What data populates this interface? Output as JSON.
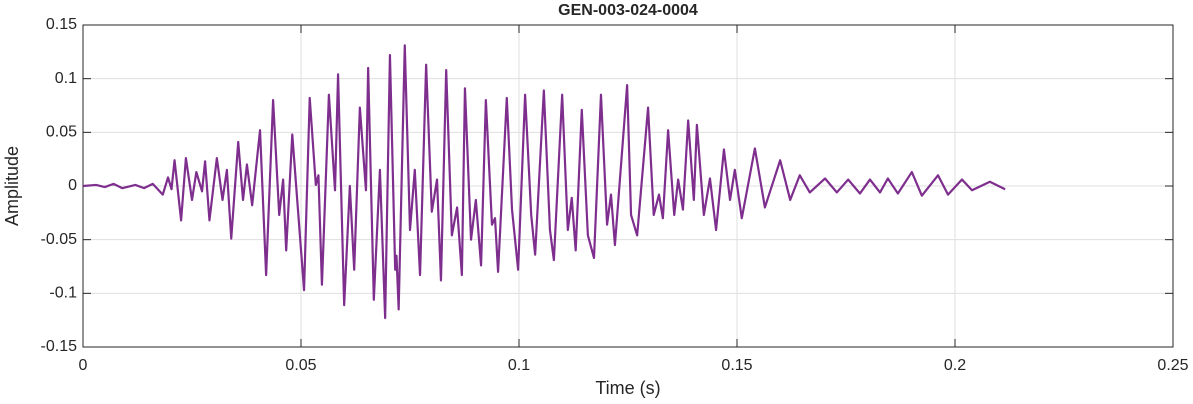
{
  "chart_data": {
    "type": "line",
    "title": "GEN-003-024-0004",
    "x_label": "Time (s)",
    "y_label": "Amplitude",
    "color": "#7e2f8e",
    "grid": true,
    "xlim": [
      0,
      0.25
    ],
    "xticks": [
      0,
      0.05,
      0.1,
      0.15,
      0.2,
      0.25
    ],
    "ylim": [
      -0.15,
      0.15
    ],
    "yticks": [
      -0.15,
      -0.1,
      -0.05,
      0,
      0.05,
      0.1,
      0.15
    ],
    "x": [
      0,
      0.003,
      0.005,
      0.007,
      0.009,
      0.012,
      0.014,
      0.016,
      0.0183,
      0.0195,
      0.0203,
      0.021,
      0.0225,
      0.0236,
      0.025,
      0.026,
      0.0273,
      0.028,
      0.029,
      0.0307,
      0.032,
      0.033,
      0.034,
      0.0356,
      0.0367,
      0.0376,
      0.0388,
      0.0406,
      0.042,
      0.0436,
      0.045,
      0.0459,
      0.0466,
      0.048,
      0.0493,
      0.0507,
      0.052,
      0.0534,
      0.054,
      0.0548,
      0.0564,
      0.0578,
      0.0585,
      0.0599,
      0.0612,
      0.0622,
      0.0635,
      0.0649,
      0.0654,
      0.0667,
      0.0681,
      0.0693,
      0.0704,
      0.0716,
      0.0719,
      0.0724,
      0.0738,
      0.075,
      0.0761,
      0.0773,
      0.0787,
      0.08,
      0.0812,
      0.0821,
      0.0833,
      0.0846,
      0.0858,
      0.0869,
      0.0876,
      0.089,
      0.0901,
      0.0913,
      0.0924,
      0.0938,
      0.0945,
      0.0952,
      0.0972,
      0.0984,
      0.0998,
      0.1014,
      0.1028,
      0.1037,
      0.1057,
      0.1071,
      0.108,
      0.1099,
      0.1112,
      0.1121,
      0.113,
      0.1144,
      0.1158,
      0.1172,
      0.1188,
      0.1202,
      0.1211,
      0.122,
      0.1248,
      0.1257,
      0.1271,
      0.1296,
      0.1309,
      0.1321,
      0.133,
      0.1342,
      0.1356,
      0.1365,
      0.1376,
      0.1388,
      0.1401,
      0.1408,
      0.1424,
      0.1438,
      0.1452,
      0.147,
      0.1484,
      0.1495,
      0.1511,
      0.1541,
      0.1564,
      0.1599,
      0.1622,
      0.1644,
      0.1667,
      0.1702,
      0.1729,
      0.1755,
      0.1782,
      0.1805,
      0.1828,
      0.1846,
      0.1869,
      0.1901,
      0.1924,
      0.1961,
      0.1984,
      0.2016,
      0.2039,
      0.208,
      0.2115
    ],
    "values": [
      0,
      0.001,
      -0.001,
      0.002,
      -0.002,
      0.001,
      -0.002,
      0.002,
      -0.008,
      0.008,
      -0.003,
      0.024,
      -0.032,
      0.026,
      -0.013,
      0.013,
      -0.005,
      0.023,
      -0.032,
      0.026,
      -0.013,
      0.015,
      -0.049,
      0.041,
      -0.013,
      0.02,
      -0.018,
      0.052,
      -0.083,
      0.08,
      -0.027,
      0.006,
      -0.06,
      0.048,
      -0.022,
      -0.097,
      0.082,
      0.001,
      0.01,
      -0.092,
      0.085,
      -0.004,
      0.104,
      -0.111,
      0,
      -0.078,
      0.073,
      -0.004,
      0.11,
      -0.106,
      0.015,
      -0.123,
      0.122,
      -0.078,
      -0.065,
      -0.115,
      0.131,
      -0.041,
      0.015,
      -0.083,
      0.113,
      -0.024,
      0.006,
      -0.088,
      0.108,
      -0.046,
      -0.02,
      -0.083,
      0.091,
      -0.05,
      -0.013,
      -0.074,
      0.08,
      -0.036,
      -0.03,
      -0.08,
      0.082,
      -0.022,
      -0.078,
      0.085,
      -0.027,
      -0.064,
      0.089,
      -0.041,
      -0.069,
      0.085,
      -0.041,
      -0.011,
      -0.06,
      0.071,
      -0.046,
      -0.067,
      0.085,
      -0.036,
      -0.008,
      -0.055,
      0.094,
      -0.027,
      -0.046,
      0.073,
      -0.027,
      -0.008,
      -0.03,
      0.052,
      -0.027,
      0.006,
      -0.022,
      0.061,
      -0.013,
      0.057,
      -0.027,
      0.007,
      -0.041,
      0.034,
      -0.013,
      0.015,
      -0.03,
      0.035,
      -0.02,
      0.024,
      -0.013,
      0.01,
      -0.006,
      0.007,
      -0.006,
      0.006,
      -0.007,
      0.006,
      -0.006,
      0.007,
      -0.007,
      0.013,
      -0.009,
      0.01,
      -0.008,
      0.006,
      -0.004,
      0.004,
      -0.003
    ]
  }
}
